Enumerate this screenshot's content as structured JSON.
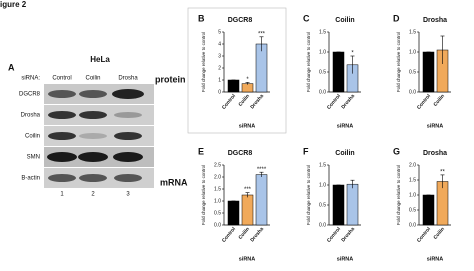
{
  "figure_label": "igure 2",
  "panel_a": {
    "letter": "A",
    "cell_line": "HeLa",
    "sirna_label": "siRNA:",
    "lanes": [
      "Control",
      "Coilin",
      "Drosha"
    ],
    "proteins": [
      "DGCR8",
      "Drosha",
      "Coilin",
      "SMN",
      "B-actin"
    ],
    "lane_numbers": [
      1,
      2,
      3
    ]
  },
  "row_labels": {
    "protein": "protein",
    "mrna": "mRNA"
  },
  "chart_data": [
    {
      "type": "bar",
      "panel": "B",
      "title": "DGCR8",
      "categories": [
        "Control",
        "Coilin",
        "Drosha"
      ],
      "values": [
        1,
        0.7,
        4.0
      ],
      "errors": [
        0,
        0.1,
        0.6
      ],
      "colors": [
        "#000000",
        "#f0a95a",
        "#a9c4e8"
      ],
      "annotations": [
        null,
        "*",
        "***"
      ],
      "ylim": [
        0,
        5
      ],
      "yticks": [
        0,
        1,
        2,
        3,
        4,
        5
      ],
      "xlabel": "siRNA",
      "ylabel": "Fold change relative to control"
    },
    {
      "type": "bar",
      "panel": "C",
      "title": "Coilin",
      "categories": [
        "Control",
        "Drosha"
      ],
      "values": [
        1.0,
        0.68
      ],
      "errors": [
        0,
        0.22
      ],
      "colors": [
        "#000000",
        "#a9c4e8"
      ],
      "annotations": [
        null,
        "*"
      ],
      "ylim": [
        0,
        1.5
      ],
      "yticks": [
        {
          "value": 0,
          "label": "0.0"
        },
        0.5,
        {
          "value": 1,
          "label": "1.0"
        },
        1.5
      ],
      "xlabel": "siRNA",
      "ylabel": "Fold change relative to control"
    },
    {
      "type": "bar",
      "panel": "D",
      "title": "Drosha",
      "categories": [
        "Control",
        "Coilin"
      ],
      "values": [
        1.0,
        1.05
      ],
      "errors": [
        0,
        0.35
      ],
      "colors": [
        "#000000",
        "#f0a95a"
      ],
      "annotations": [
        null,
        null
      ],
      "ylim": [
        0,
        1.5
      ],
      "yticks": [
        {
          "value": 0,
          "label": "0.0"
        },
        0.5,
        {
          "value": 1,
          "label": "1.0"
        },
        1.5
      ],
      "xlabel": "siRNA",
      "ylabel": "Fold change relative to control"
    },
    {
      "type": "bar",
      "panel": "E",
      "title": "DGCR8",
      "categories": [
        "Control",
        "Coilin",
        "Drosha"
      ],
      "values": [
        1.0,
        1.25,
        2.1
      ],
      "errors": [
        0,
        0.1,
        0.1
      ],
      "colors": [
        "#000000",
        "#f0a95a",
        "#a9c4e8"
      ],
      "annotations": [
        null,
        "***",
        "****"
      ],
      "ylim": [
        0,
        2.5
      ],
      "yticks": [
        {
          "value": 0,
          "label": "0.0"
        },
        0.5,
        {
          "value": 1,
          "label": "1.0"
        },
        1.5,
        {
          "value": 2,
          "label": "2.0"
        },
        2.5
      ],
      "xlabel": "siRNA",
      "ylabel": "Fold change relative to control"
    },
    {
      "type": "bar",
      "panel": "F",
      "title": "Coilin",
      "categories": [
        "Control",
        "Drosha"
      ],
      "values": [
        1.0,
        1.02
      ],
      "errors": [
        0,
        0.1
      ],
      "colors": [
        "#000000",
        "#a9c4e8"
      ],
      "annotations": [
        null,
        null
      ],
      "ylim": [
        0,
        1.5
      ],
      "yticks": [
        {
          "value": 0,
          "label": "0.0"
        },
        0.5,
        {
          "value": 1,
          "label": "1.0"
        },
        1.5
      ],
      "xlabel": "siRNA",
      "ylabel": "Fold change relative to control"
    },
    {
      "type": "bar",
      "panel": "G",
      "title": "Drosha",
      "categories": [
        "Control",
        "Coilin"
      ],
      "values": [
        1.0,
        1.45
      ],
      "errors": [
        0,
        0.22
      ],
      "colors": [
        "#000000",
        "#f0a95a"
      ],
      "annotations": [
        null,
        "**"
      ],
      "ylim": [
        0,
        2
      ],
      "yticks": [
        {
          "value": 0,
          "label": "0.0"
        },
        0.5,
        {
          "value": 1,
          "label": "1.0"
        },
        1.5,
        {
          "value": 2,
          "label": "2.0"
        }
      ],
      "xlabel": "siRNA",
      "ylabel": "Fold change relative to control"
    }
  ]
}
